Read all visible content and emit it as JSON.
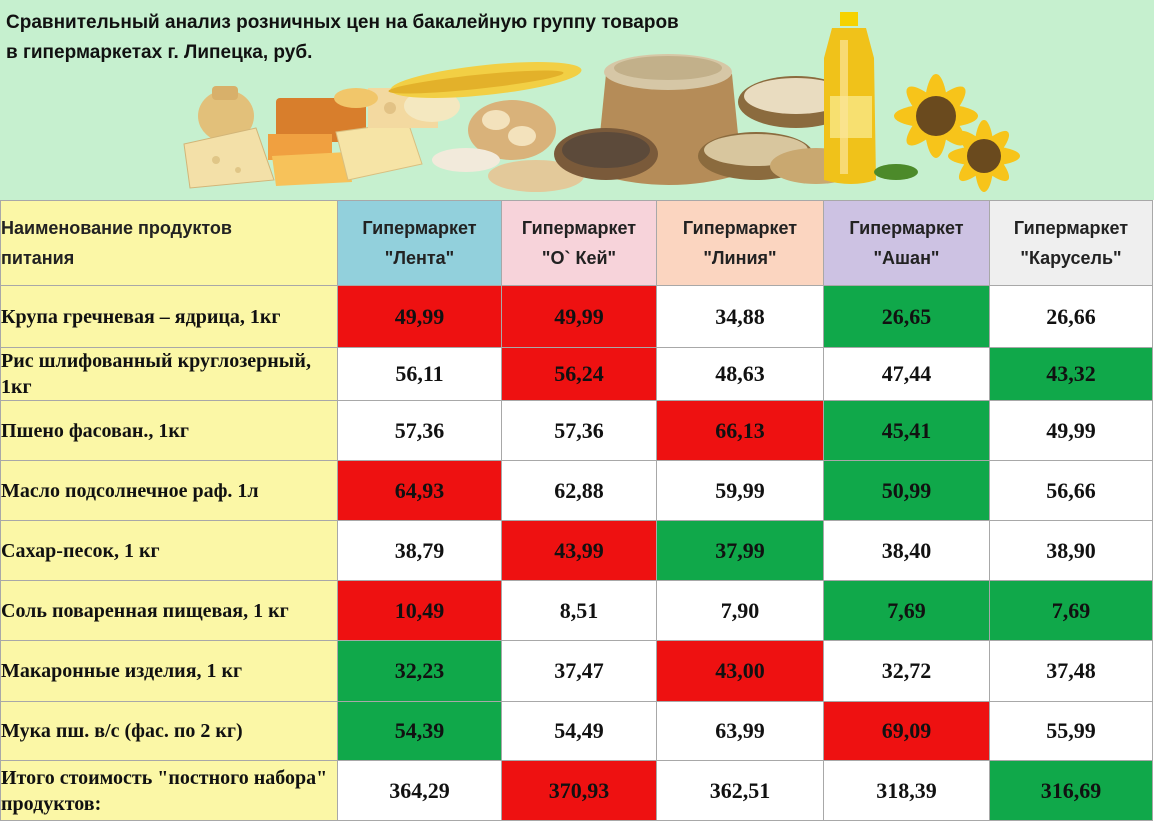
{
  "title": {
    "line1": "Сравнительный анализ розничных цен на бакалейную группу товаров",
    "line2": "в гипермаркетах г. Липецка, руб."
  },
  "header": {
    "name_col": [
      "Наименование продуктов",
      "питания"
    ],
    "stores": [
      {
        "line1": "Гипермаркет",
        "line2": "\"Лента\"",
        "color": "#92d0dc"
      },
      {
        "line1": "Гипермаркет",
        "line2": "\"О` Кей\"",
        "color": "#f7d3da"
      },
      {
        "line1": "Гипермаркет",
        "line2": "\"Линия\"",
        "color": "#fbd5c0"
      },
      {
        "line1": "Гипермаркет",
        "line2": "\"Ашан\"",
        "color": "#cdc2e3"
      },
      {
        "line1": "Гипермаркет",
        "line2": "\"Карусель\"",
        "color": "#efefef"
      }
    ]
  },
  "colors": {
    "red": "#ee1111",
    "green": "#10a84a",
    "name_bg": "#fbf7a6",
    "banner_bg": "#c6f0cf"
  },
  "rows": [
    {
      "name": "Крупа гречневая – ядрица, 1кг",
      "values": [
        "49,99",
        "49,99",
        "34,88",
        "26,65",
        "26,66"
      ],
      "colors": [
        "red",
        "red",
        "",
        "green",
        ""
      ]
    },
    {
      "name": "Рис шлифованный круглозерный, 1кг",
      "values": [
        "56,11",
        "56,24",
        "48,63",
        "47,44",
        "43,32"
      ],
      "colors": [
        "",
        "red",
        "",
        "",
        "green"
      ]
    },
    {
      "name": "Пшено фасован., 1кг",
      "values": [
        "57,36",
        "57,36",
        "66,13",
        "45,41",
        "49,99"
      ],
      "colors": [
        "",
        "",
        "red",
        "green",
        ""
      ]
    },
    {
      "name": "Масло подсолнечное раф. 1л",
      "values": [
        "64,93",
        "62,88",
        "59,99",
        "50,99",
        "56,66"
      ],
      "colors": [
        "red",
        "",
        "",
        "green",
        ""
      ]
    },
    {
      "name": "Сахар-песок, 1 кг",
      "values": [
        "38,79",
        "43,99",
        "37,99",
        "38,40",
        "38,90"
      ],
      "colors": [
        "",
        "red",
        "green",
        "",
        ""
      ]
    },
    {
      "name": "Соль поваренная пищевая, 1 кг",
      "values": [
        "10,49",
        "8,51",
        "7,90",
        "7,69",
        "7,69"
      ],
      "colors": [
        "red",
        "",
        "",
        "green",
        "green"
      ]
    },
    {
      "name": "Макаронные изделия, 1 кг",
      "values": [
        "32,23",
        "37,47",
        "43,00",
        "32,72",
        "37,48"
      ],
      "colors": [
        "green",
        "",
        "red",
        "",
        ""
      ]
    },
    {
      "name": "Мука пш. в/с (фас. по 2 кг)",
      "values": [
        "54,39",
        "54,49",
        "63,99",
        "69,09",
        "55,99"
      ],
      "colors": [
        "green",
        "",
        "",
        "red",
        ""
      ]
    },
    {
      "name": "Итого стоимость \"постного набора\" продуктов:",
      "values": [
        "364,29",
        "370,93",
        "362,51",
        "318,39",
        "316,69"
      ],
      "colors": [
        "",
        "red",
        "",
        "",
        "green"
      ]
    }
  ]
}
